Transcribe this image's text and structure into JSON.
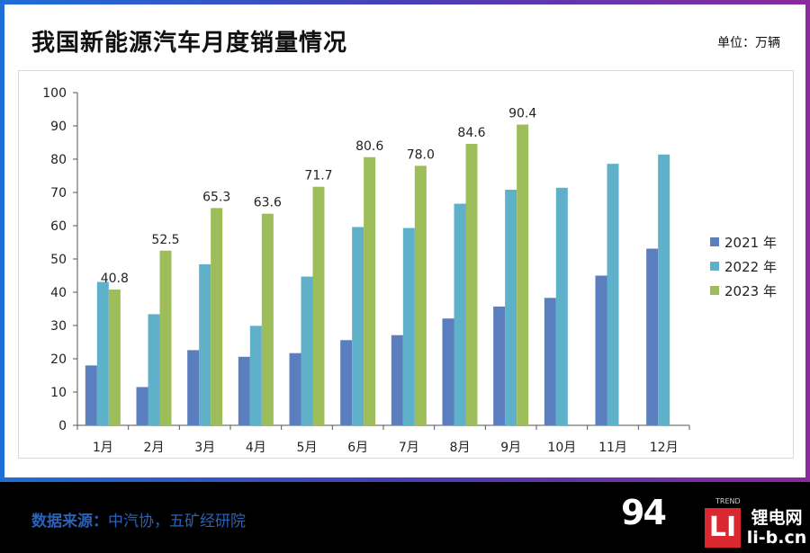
{
  "header": {
    "title": "我国新能源汽车月度销量情况",
    "unit": "单位：万辆"
  },
  "footer": {
    "source_label": "数据来源：",
    "source_value": "中汽协，五矿经研院"
  },
  "watermark": {
    "brand_number": "94",
    "brand_tag": "TREND",
    "logo_letters": "LI",
    "site_name": "锂电网",
    "site_url": "li-b.cn"
  },
  "colors": {
    "series_2021": "#5b7fbe",
    "series_2022": "#5fb0c9",
    "series_2023": "#9dbd5a"
  },
  "chart_data": {
    "type": "bar",
    "categories": [
      "1月",
      "2月",
      "3月",
      "4月",
      "5月",
      "6月",
      "7月",
      "8月",
      "9月",
      "10月",
      "11月",
      "12月"
    ],
    "ylim": [
      0,
      100
    ],
    "yticks": [
      0,
      10,
      20,
      30,
      40,
      50,
      60,
      70,
      80,
      90,
      100
    ],
    "legend_position": "right",
    "grid": false,
    "series": [
      {
        "name": "2021 年",
        "color": "#5b7fbe",
        "values": [
          18.0,
          11.5,
          22.6,
          20.6,
          21.7,
          25.6,
          27.1,
          32.1,
          35.7,
          38.3,
          45.0,
          53.1
        ]
      },
      {
        "name": "2022 年",
        "color": "#5fb0c9",
        "values": [
          43.1,
          33.4,
          48.4,
          29.9,
          44.7,
          59.6,
          59.3,
          66.6,
          70.8,
          71.4,
          78.6,
          81.4
        ]
      },
      {
        "name": "2023 年",
        "color": "#9dbd5a",
        "values": [
          40.8,
          52.5,
          65.3,
          63.6,
          71.7,
          80.6,
          78.0,
          84.6,
          90.4,
          null,
          null,
          null
        ]
      }
    ],
    "data_labels_series": 2
  }
}
